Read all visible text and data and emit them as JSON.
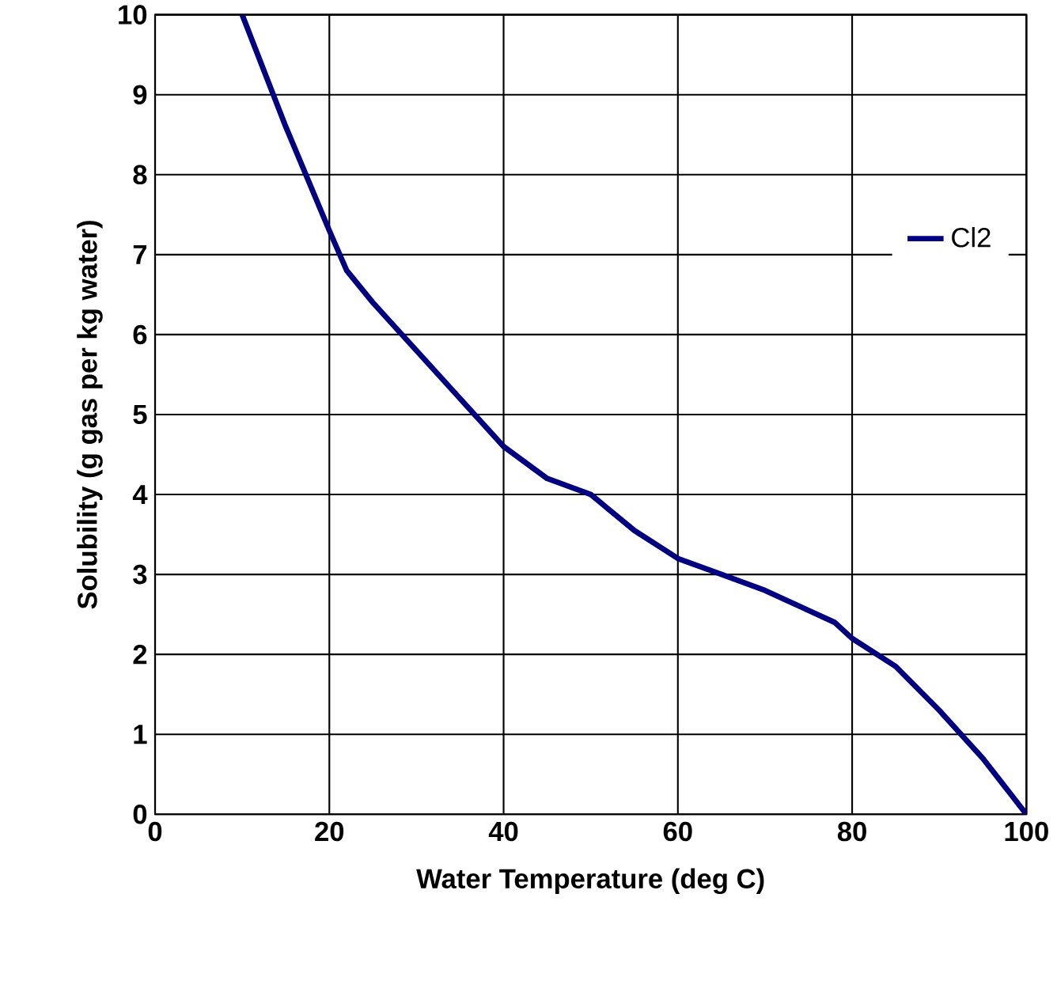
{
  "chart_data": {
    "type": "line",
    "xlabel": "Water Temperature (deg C)",
    "ylabel": "Solubility (g gas per kg water)",
    "x": [
      10,
      15,
      20,
      22,
      25,
      30,
      35,
      40,
      45,
      50,
      55,
      60,
      65,
      70,
      75,
      78,
      80,
      85,
      90,
      95,
      100
    ],
    "series": [
      {
        "name": "Cl2",
        "color": "#000080",
        "values": [
          10,
          8.6,
          7.3,
          6.8,
          6.4,
          5.8,
          5.2,
          4.6,
          4.2,
          4.0,
          3.55,
          3.2,
          3.0,
          2.8,
          2.55,
          2.4,
          2.2,
          1.85,
          1.3,
          0.7,
          0
        ]
      }
    ],
    "xlim": [
      0,
      100
    ],
    "ylim": [
      0,
      10
    ],
    "xticks": [
      0,
      20,
      40,
      60,
      80,
      100
    ],
    "yticks": [
      0,
      1,
      2,
      3,
      4,
      5,
      6,
      7,
      8,
      9,
      10
    ],
    "grid": true,
    "legend": "right",
    "marker": "none",
    "line_style": "solid"
  }
}
